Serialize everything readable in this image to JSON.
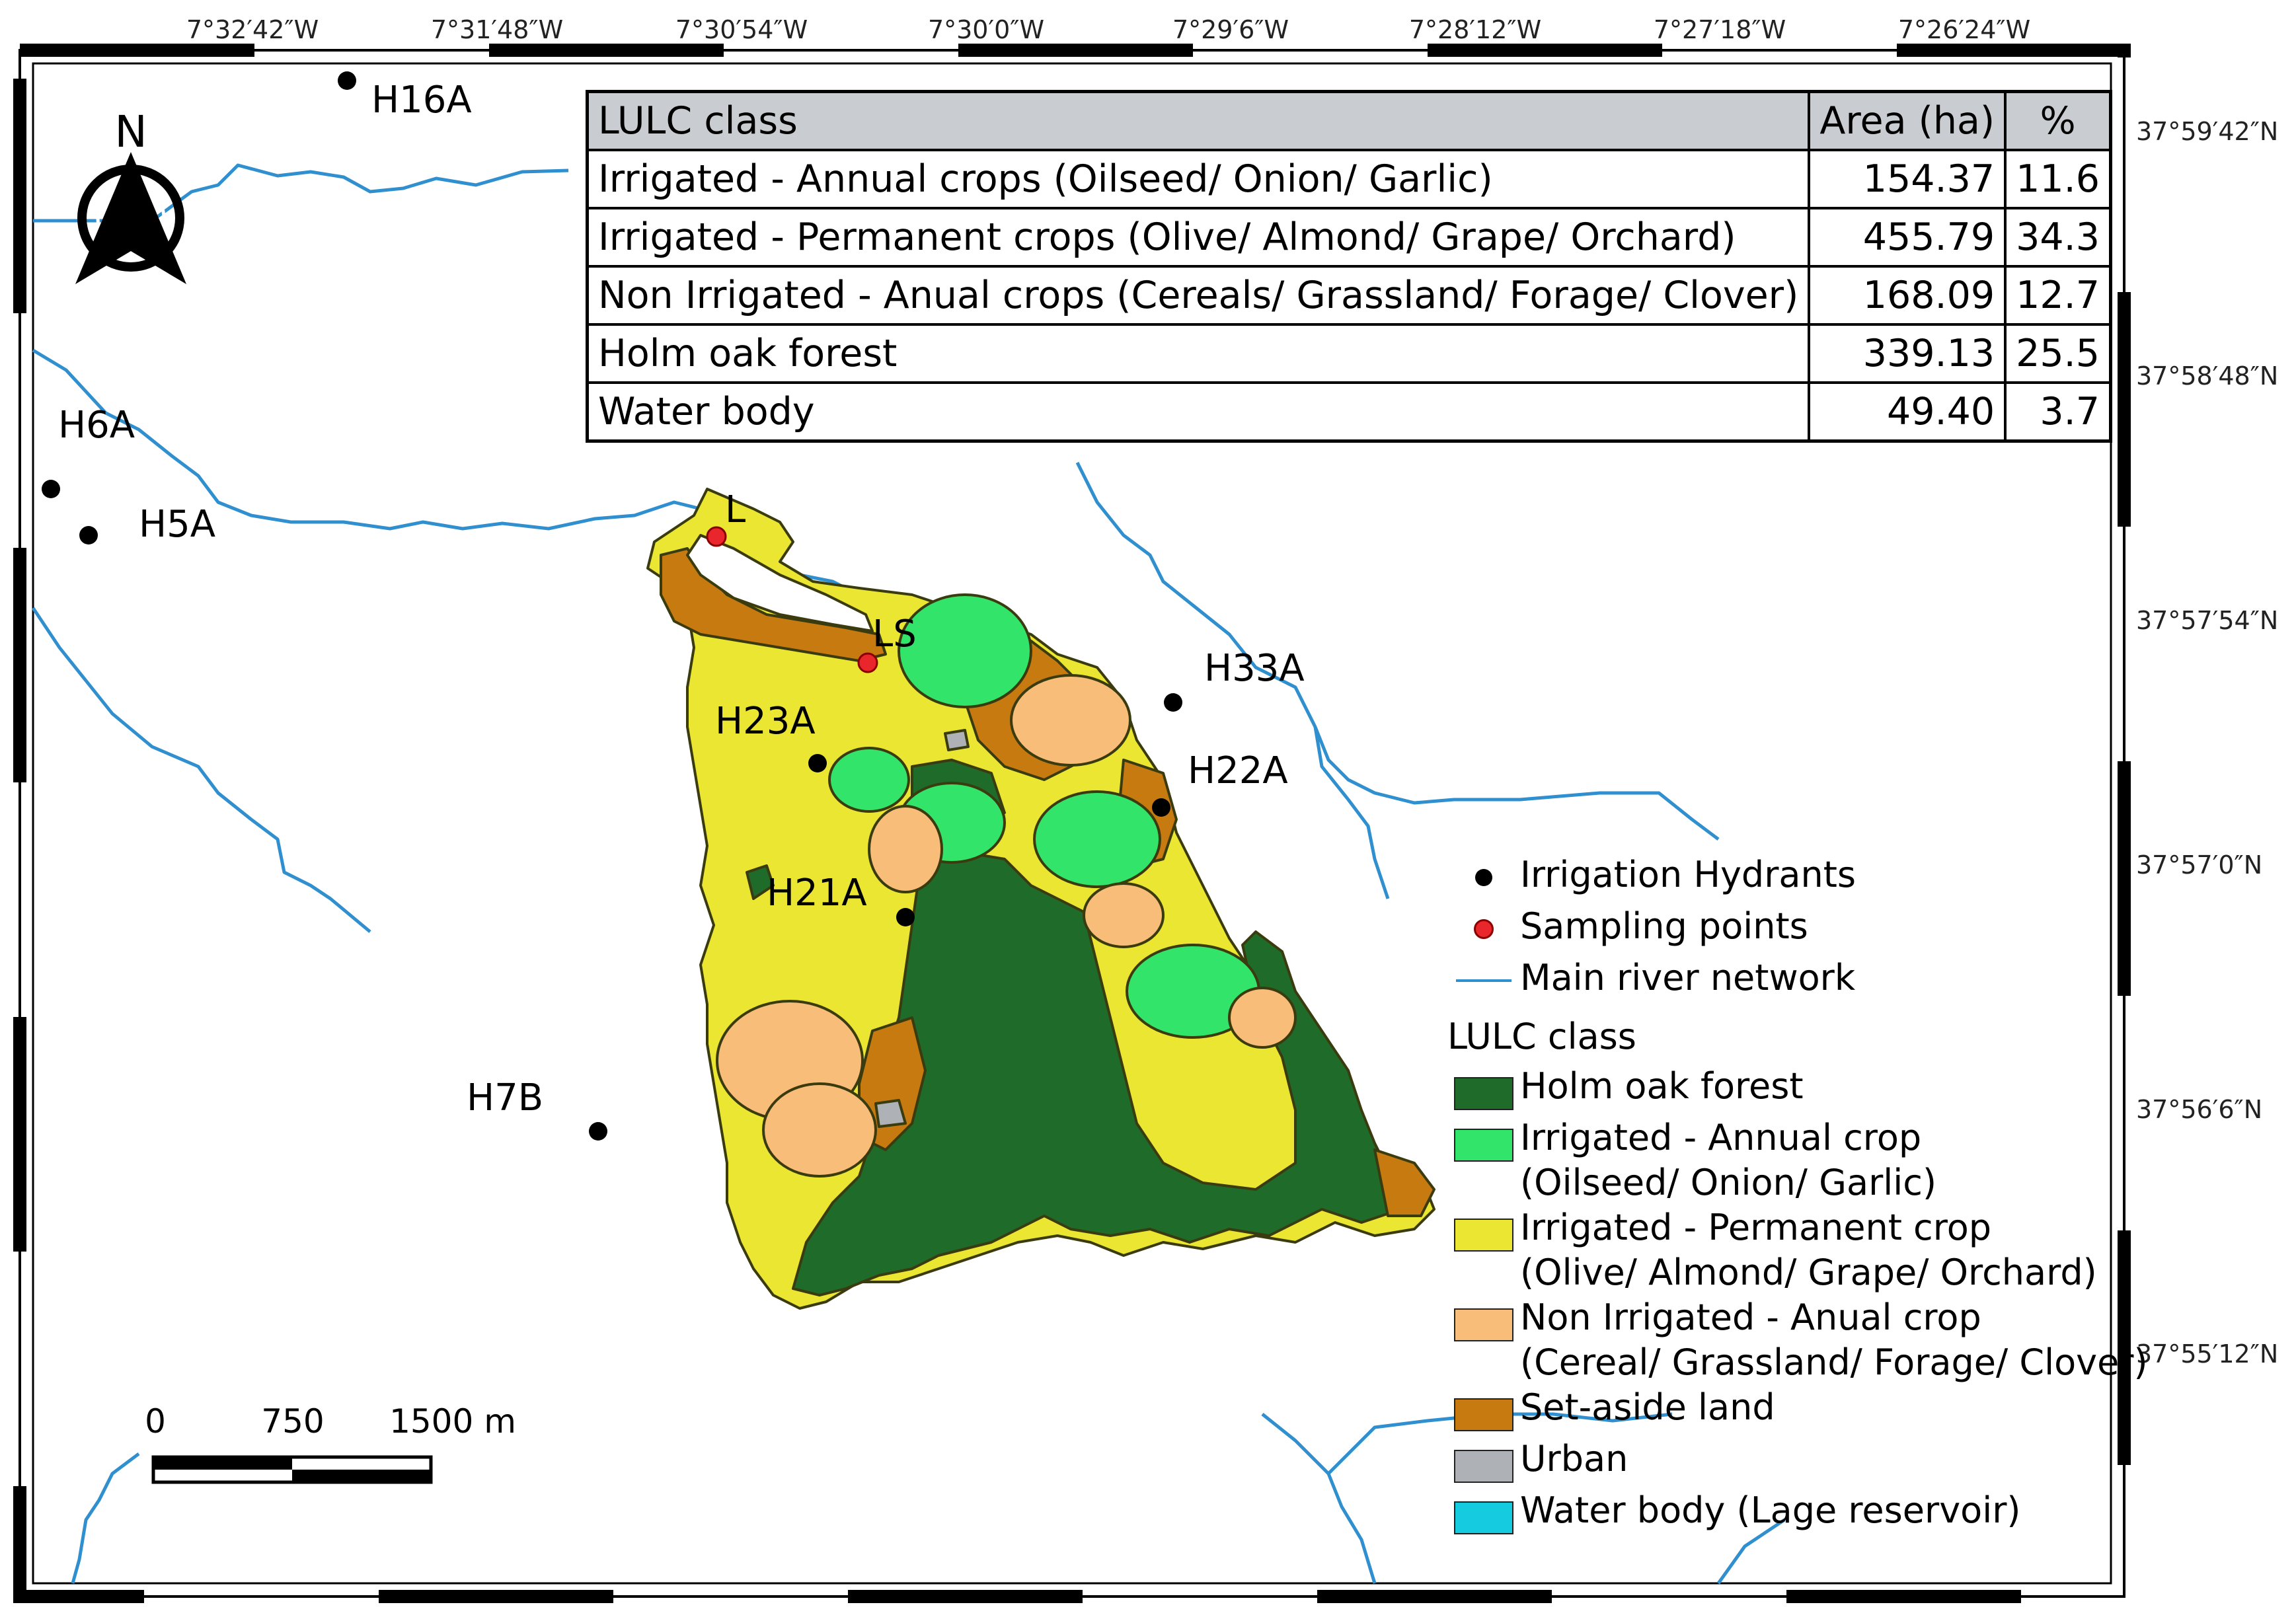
{
  "longitude_labels": [
    "7°32′42″W",
    "7°31′48″W",
    "7°30′54″W",
    "7°30′0″W",
    "7°29′6″W",
    "7°28′12″W",
    "7°27′18″W",
    "7°26′24″W"
  ],
  "latitude_labels": [
    "37°59′42″N",
    "37°58′48″N",
    "37°57′54″N",
    "37°57′0″N",
    "37°56′6″N",
    "37°55′12″N"
  ],
  "north_arrow": {
    "label": "N",
    "icon": "north-arrow-icon"
  },
  "scale_bar": {
    "labels": [
      "0",
      "750",
      "1500 m"
    ]
  },
  "hydrants": [
    {
      "label": "H16A"
    },
    {
      "label": "H6A"
    },
    {
      "label": "H5A"
    },
    {
      "label": "H33A"
    },
    {
      "label": "H23A"
    },
    {
      "label": "H22A"
    },
    {
      "label": "H21A"
    },
    {
      "label": "H7B"
    }
  ],
  "sampling_points": [
    {
      "label": "L"
    },
    {
      "label": "LS"
    }
  ],
  "table": {
    "headers": [
      "LULC class",
      "Area (ha)",
      "%"
    ],
    "rows": [
      {
        "class": "Irrigated - Annual crops (Oilseed/ Onion/ Garlic)",
        "area": "154.37",
        "pct": "11.6"
      },
      {
        "class": "Irrigated - Permanent crops (Olive/ Almond/ Grape/ Orchard)",
        "area": "455.79",
        "pct": "34.3"
      },
      {
        "class": "Non Irrigated - Anual crops (Cereals/ Grassland/ Forage/ Clover)",
        "area": "168.09",
        "pct": "12.7"
      },
      {
        "class": "Holm oak forest",
        "area": "339.13",
        "pct": "25.5"
      },
      {
        "class": "Water body",
        "area": "49.40",
        "pct": "3.7"
      }
    ]
  },
  "legend": {
    "points": [
      {
        "label": "Irrigation Hydrants",
        "color": "#000000"
      },
      {
        "label": "Sampling points",
        "color": "#e8262b"
      }
    ],
    "river": {
      "label": "Main river network",
      "color": "#2f8fcf"
    },
    "lulc_heading": "LULC class",
    "classes": [
      {
        "line1": "Holm oak forest",
        "line2": "",
        "color": "#1f6b2a"
      },
      {
        "line1": "Irrigated - Annual crop",
        "line2": "(Oilseed/ Onion/ Garlic)",
        "color": "#33e46a"
      },
      {
        "line1": "Irrigated - Permanent crop",
        "line2": "(Olive/ Almond/ Grape/ Orchard)",
        "color": "#ebe632"
      },
      {
        "line1": "Non Irrigated - Anual crop",
        "line2": "(Cereal/ Grassland/ Forage/ Clover)",
        "color": "#f8bd78"
      },
      {
        "line1": "Set-aside land",
        "line2": "",
        "color": "#c77a10"
      },
      {
        "line1": "Urban",
        "line2": "",
        "color": "#aeb2b6"
      },
      {
        "line1": "Water body (Lage reservoir)",
        "line2": "",
        "color": "#14cbe0"
      }
    ]
  },
  "colors": {
    "forest": "#1f6b2a",
    "annual": "#33e46a",
    "permanent": "#ebe632",
    "nonirrigated": "#f8bd78",
    "setaside": "#c77a10",
    "urban": "#aeb2b6",
    "river": "#2f8fcf"
  }
}
